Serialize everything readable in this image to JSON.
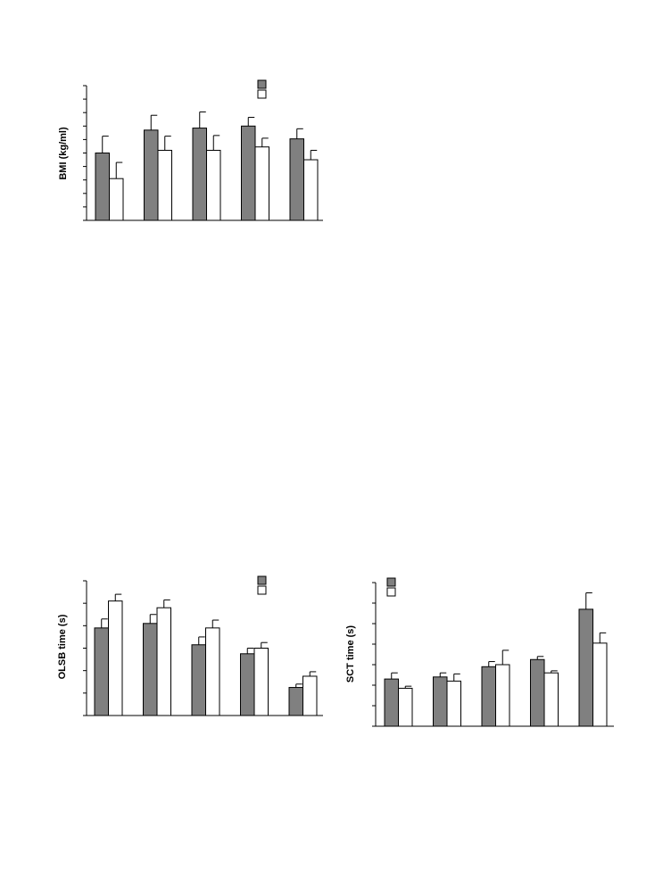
{
  "colors": {
    "series_fill": [
      "#808080",
      "#ffffff"
    ],
    "stroke": "#000000"
  },
  "chart_data": [
    {
      "type": "bar",
      "ylabel": "BMI (kg/ml)",
      "ylim": [
        0,
        10
      ],
      "yticks": 10,
      "legend_position": "top-right",
      "categories": [
        "",
        "",
        "",
        "",
        ""
      ],
      "series": [
        {
          "values": [
            5.0,
            6.7,
            6.85,
            7.0,
            6.05
          ],
          "errors": [
            1.25,
            1.1,
            1.2,
            0.65,
            0.75
          ]
        },
        {
          "values": [
            3.1,
            5.2,
            5.2,
            5.45,
            4.5
          ],
          "errors": [
            1.2,
            1.05,
            1.1,
            0.65,
            0.7
          ]
        }
      ]
    },
    {
      "type": "bar",
      "ylabel": "OLSB time (s)",
      "ylim": [
        0,
        6
      ],
      "yticks": 6,
      "legend_position": "top-right",
      "categories": [
        "",
        "",
        "",
        "",
        ""
      ],
      "series": [
        {
          "values": [
            3.9,
            4.1,
            3.15,
            2.75,
            1.25
          ],
          "errors": [
            0.4,
            0.4,
            0.35,
            0.25,
            0.15
          ]
        },
        {
          "values": [
            5.1,
            4.8,
            3.9,
            3.0,
            1.75
          ],
          "errors": [
            0.3,
            0.35,
            0.35,
            0.25,
            0.2
          ]
        }
      ]
    },
    {
      "type": "bar",
      "ylabel": "SCT time (s)",
      "ylim": [
        0,
        7
      ],
      "yticks": 7,
      "legend_position": "top-left",
      "categories": [
        "",
        "",
        "",
        "",
        ""
      ],
      "series": [
        {
          "values": [
            2.3,
            2.4,
            2.9,
            3.25,
            5.7
          ],
          "errors": [
            0.3,
            0.2,
            0.25,
            0.15,
            0.8
          ]
        },
        {
          "values": [
            1.85,
            2.2,
            3.0,
            2.6,
            4.05
          ],
          "errors": [
            0.1,
            0.35,
            0.7,
            0.1,
            0.5
          ]
        }
      ]
    }
  ]
}
